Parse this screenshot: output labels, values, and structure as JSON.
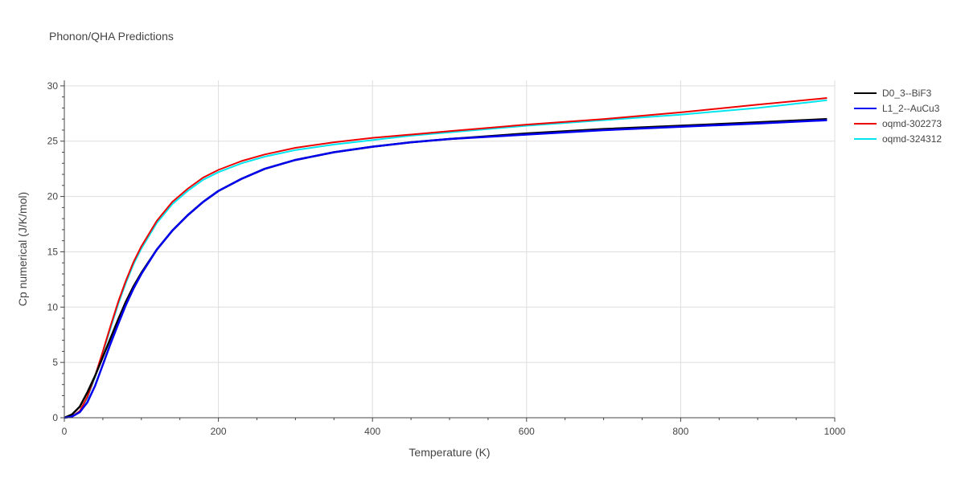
{
  "chart_data": {
    "type": "line",
    "title": "Phonon/QHA Predictions",
    "xlabel": "Temperature (K)",
    "ylabel": "Cp numerical (J/K/mol)",
    "xlim": [
      0,
      1000
    ],
    "ylim": [
      0,
      30.5
    ],
    "xticks": [
      0,
      200,
      400,
      600,
      800,
      1000
    ],
    "yticks": [
      0,
      5,
      10,
      15,
      20,
      25,
      30
    ],
    "grid": true,
    "legend_position": "top-right",
    "series": [
      {
        "name": "D0_3--BiF3",
        "color": "#000000",
        "x": [
          0,
          10,
          20,
          30,
          40,
          50,
          60,
          70,
          80,
          90,
          100,
          120,
          140,
          160,
          180,
          200,
          230,
          260,
          300,
          350,
          400,
          450,
          500,
          600,
          700,
          800,
          900,
          990
        ],
        "y": [
          0,
          0.3,
          1.0,
          2.3,
          3.8,
          5.5,
          7.2,
          8.9,
          10.5,
          11.9,
          13.1,
          15.2,
          16.9,
          18.3,
          19.5,
          20.5,
          21.6,
          22.5,
          23.3,
          24.0,
          24.5,
          24.9,
          25.2,
          25.7,
          26.1,
          26.4,
          26.7,
          27.0
        ]
      },
      {
        "name": "L1_2--AuCu3",
        "color": "#0000ee",
        "x": [
          0,
          10,
          20,
          30,
          40,
          50,
          60,
          70,
          80,
          90,
          100,
          120,
          140,
          160,
          180,
          200,
          230,
          260,
          300,
          350,
          400,
          450,
          500,
          600,
          700,
          800,
          900,
          990
        ],
        "y": [
          0,
          0.1,
          0.5,
          1.4,
          2.9,
          4.8,
          6.7,
          8.5,
          10.2,
          11.7,
          13.0,
          15.2,
          16.9,
          18.3,
          19.5,
          20.5,
          21.6,
          22.5,
          23.3,
          24.0,
          24.5,
          24.9,
          25.2,
          25.6,
          26.0,
          26.3,
          26.6,
          26.9
        ]
      },
      {
        "name": "oqmd-302273",
        "color": "#ee0000",
        "x": [
          0,
          10,
          20,
          30,
          40,
          50,
          60,
          70,
          80,
          90,
          100,
          120,
          140,
          160,
          180,
          200,
          230,
          260,
          300,
          350,
          400,
          450,
          500,
          600,
          700,
          800,
          900,
          990
        ],
        "y": [
          0,
          0.1,
          0.6,
          1.9,
          3.8,
          6.0,
          8.3,
          10.5,
          12.4,
          14.1,
          15.5,
          17.8,
          19.5,
          20.7,
          21.7,
          22.4,
          23.2,
          23.8,
          24.4,
          24.9,
          25.3,
          25.6,
          25.9,
          26.5,
          27.0,
          27.6,
          28.3,
          28.9
        ]
      },
      {
        "name": "oqmd-324312",
        "color": "#00e5ee",
        "x": [
          0,
          10,
          20,
          30,
          40,
          50,
          60,
          70,
          80,
          90,
          100,
          120,
          140,
          160,
          180,
          200,
          230,
          260,
          300,
          350,
          400,
          450,
          500,
          600,
          700,
          800,
          900,
          990
        ],
        "y": [
          0,
          0.1,
          0.6,
          1.8,
          3.7,
          5.9,
          8.1,
          10.3,
          12.2,
          13.9,
          15.3,
          17.6,
          19.3,
          20.5,
          21.5,
          22.2,
          23.0,
          23.6,
          24.2,
          24.7,
          25.1,
          25.5,
          25.8,
          26.4,
          26.9,
          27.4,
          28.0,
          28.7
        ]
      }
    ]
  }
}
